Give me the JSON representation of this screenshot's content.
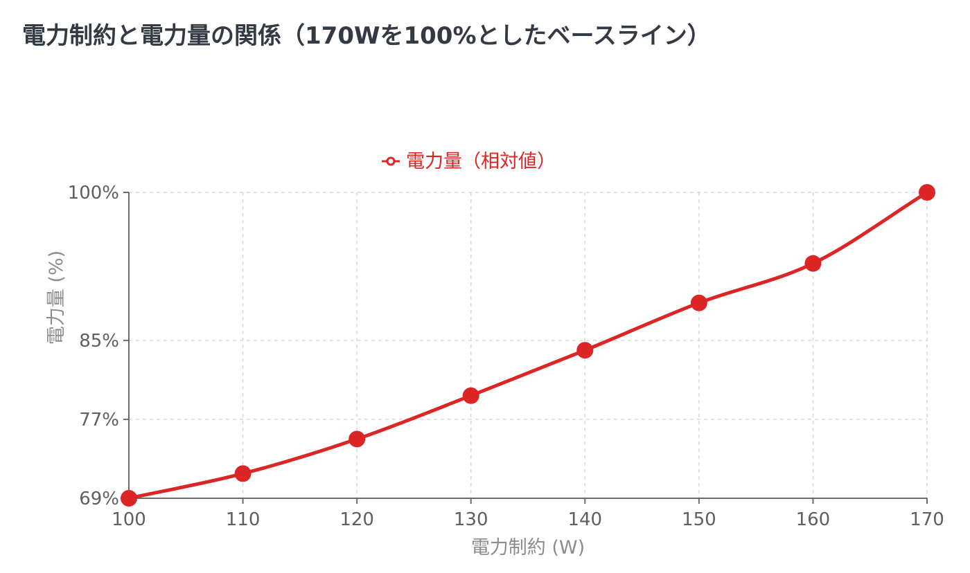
{
  "title": "電力制約と電力量の関係（170Wを100%としたベースライン）",
  "chart_data": {
    "type": "line",
    "title": "電力制約と電力量の関係（170Wを100%としたベースライン）",
    "xlabel": "電力制約 (W)",
    "ylabel": "電力量 (%)",
    "x": [
      100,
      110,
      120,
      130,
      140,
      150,
      160,
      170
    ],
    "x_tick_labels": [
      "100",
      "110",
      "120",
      "130",
      "140",
      "150",
      "160",
      "170"
    ],
    "y_tick_values": [
      69,
      77,
      85,
      100
    ],
    "y_tick_labels": [
      "69%",
      "77%",
      "85%",
      "100%"
    ],
    "xlim": [
      100,
      170
    ],
    "ylim": [
      69,
      100
    ],
    "grid": true,
    "legend_position": "top-center",
    "series": [
      {
        "name": "電力量（相対値）",
        "color": "#dc2626",
        "values": [
          69.0,
          71.5,
          75.0,
          79.4,
          84.0,
          88.8,
          92.8,
          100.0
        ]
      }
    ]
  }
}
